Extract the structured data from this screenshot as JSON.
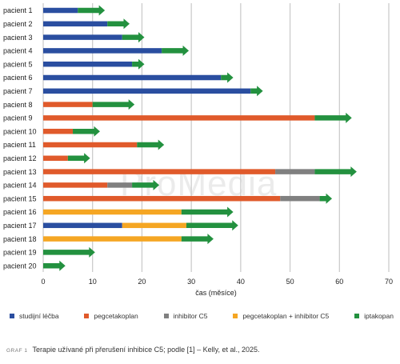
{
  "chart_data": {
    "type": "bar",
    "orientation": "horizontal",
    "stacked": true,
    "xlabel": "čas (měsíce)",
    "xlim": [
      0,
      70
    ],
    "xticks": [
      0,
      10,
      20,
      30,
      40,
      50,
      60,
      70
    ],
    "grid": true,
    "legend_position": "bottom",
    "series": [
      {
        "key": "studijni",
        "name": "studijní léčba",
        "color": "#2a4ea0"
      },
      {
        "key": "peg",
        "name": "pegcetakoplan",
        "color": "#e05a2b"
      },
      {
        "key": "c5",
        "name": "inhibitor C5",
        "color": "#808080"
      },
      {
        "key": "pegc5",
        "name": "pegcetakoplan + inhibitor C5",
        "color": "#f5a623"
      },
      {
        "key": "ipt",
        "name": "iptakopan",
        "color": "#23913f"
      }
    ],
    "patients": [
      {
        "label": "pacient 1",
        "segments": [
          {
            "s": "studijni",
            "from": 0,
            "to": 7
          },
          {
            "s": "ipt",
            "from": 7,
            "to": 12.5
          }
        ]
      },
      {
        "label": "pacient 2",
        "segments": [
          {
            "s": "studijni",
            "from": 0,
            "to": 13
          },
          {
            "s": "ipt",
            "from": 13,
            "to": 17.5
          }
        ]
      },
      {
        "label": "pacient 3",
        "segments": [
          {
            "s": "studijni",
            "from": 0,
            "to": 16
          },
          {
            "s": "ipt",
            "from": 16,
            "to": 20.5
          }
        ]
      },
      {
        "label": "pacient 4",
        "segments": [
          {
            "s": "studijni",
            "from": 0,
            "to": 24
          },
          {
            "s": "ipt",
            "from": 24,
            "to": 29.5
          }
        ]
      },
      {
        "label": "pacient 5",
        "segments": [
          {
            "s": "studijni",
            "from": 0,
            "to": 18
          },
          {
            "s": "ipt",
            "from": 18,
            "to": 20.5
          }
        ]
      },
      {
        "label": "pacient 6",
        "segments": [
          {
            "s": "studijni",
            "from": 0,
            "to": 36
          },
          {
            "s": "ipt",
            "from": 36,
            "to": 38.5
          }
        ]
      },
      {
        "label": "pacient 7",
        "segments": [
          {
            "s": "studijni",
            "from": 0,
            "to": 42
          },
          {
            "s": "ipt",
            "from": 42,
            "to": 44.5
          }
        ]
      },
      {
        "label": "pacient 8",
        "segments": [
          {
            "s": "peg",
            "from": 0,
            "to": 10
          },
          {
            "s": "ipt",
            "from": 10,
            "to": 18.5
          }
        ]
      },
      {
        "label": "pacient 9",
        "segments": [
          {
            "s": "peg",
            "from": 0,
            "to": 55
          },
          {
            "s": "ipt",
            "from": 55,
            "to": 62.5
          }
        ]
      },
      {
        "label": "pacient 10",
        "segments": [
          {
            "s": "peg",
            "from": 0,
            "to": 6
          },
          {
            "s": "ipt",
            "from": 6,
            "to": 11.5
          }
        ]
      },
      {
        "label": "pacient 11",
        "segments": [
          {
            "s": "peg",
            "from": 0,
            "to": 19
          },
          {
            "s": "ipt",
            "from": 19,
            "to": 24.5
          }
        ]
      },
      {
        "label": "pacient 12",
        "segments": [
          {
            "s": "peg",
            "from": 0,
            "to": 5
          },
          {
            "s": "ipt",
            "from": 5,
            "to": 9.5
          }
        ]
      },
      {
        "label": "pacient 13",
        "segments": [
          {
            "s": "peg",
            "from": 0,
            "to": 47
          },
          {
            "s": "c5",
            "from": 47,
            "to": 55
          },
          {
            "s": "ipt",
            "from": 55,
            "to": 63.5
          }
        ]
      },
      {
        "label": "pacient 14",
        "segments": [
          {
            "s": "peg",
            "from": 0,
            "to": 13
          },
          {
            "s": "c5",
            "from": 13,
            "to": 18
          },
          {
            "s": "ipt",
            "from": 18,
            "to": 23.5
          }
        ]
      },
      {
        "label": "pacient 15",
        "segments": [
          {
            "s": "peg",
            "from": 0,
            "to": 48
          },
          {
            "s": "c5",
            "from": 48,
            "to": 56
          },
          {
            "s": "ipt",
            "from": 56,
            "to": 58.5
          }
        ]
      },
      {
        "label": "pacient 16",
        "segments": [
          {
            "s": "pegc5",
            "from": 0,
            "to": 28
          },
          {
            "s": "ipt",
            "from": 28,
            "to": 38.5
          }
        ]
      },
      {
        "label": "pacient 17",
        "segments": [
          {
            "s": "studijni",
            "from": 0,
            "to": 16
          },
          {
            "s": "pegc5",
            "from": 16,
            "to": 29
          },
          {
            "s": "ipt",
            "from": 29,
            "to": 39.5
          }
        ]
      },
      {
        "label": "pacient 18",
        "segments": [
          {
            "s": "pegc5",
            "from": 0,
            "to": 28
          },
          {
            "s": "ipt",
            "from": 28,
            "to": 34.5
          }
        ]
      },
      {
        "label": "pacient 19",
        "segments": [
          {
            "s": "ipt",
            "from": 0,
            "to": 10.5
          }
        ]
      },
      {
        "label": "pacient 20",
        "segments": [
          {
            "s": "ipt",
            "from": 0,
            "to": 4.5
          }
        ]
      }
    ]
  },
  "caption": {
    "tag": "GRAF 1",
    "text": "Terapie užívané při přerušení inhibice C5; podle [1] – Kelly, et al., 2025."
  },
  "watermark": "ProMedia"
}
